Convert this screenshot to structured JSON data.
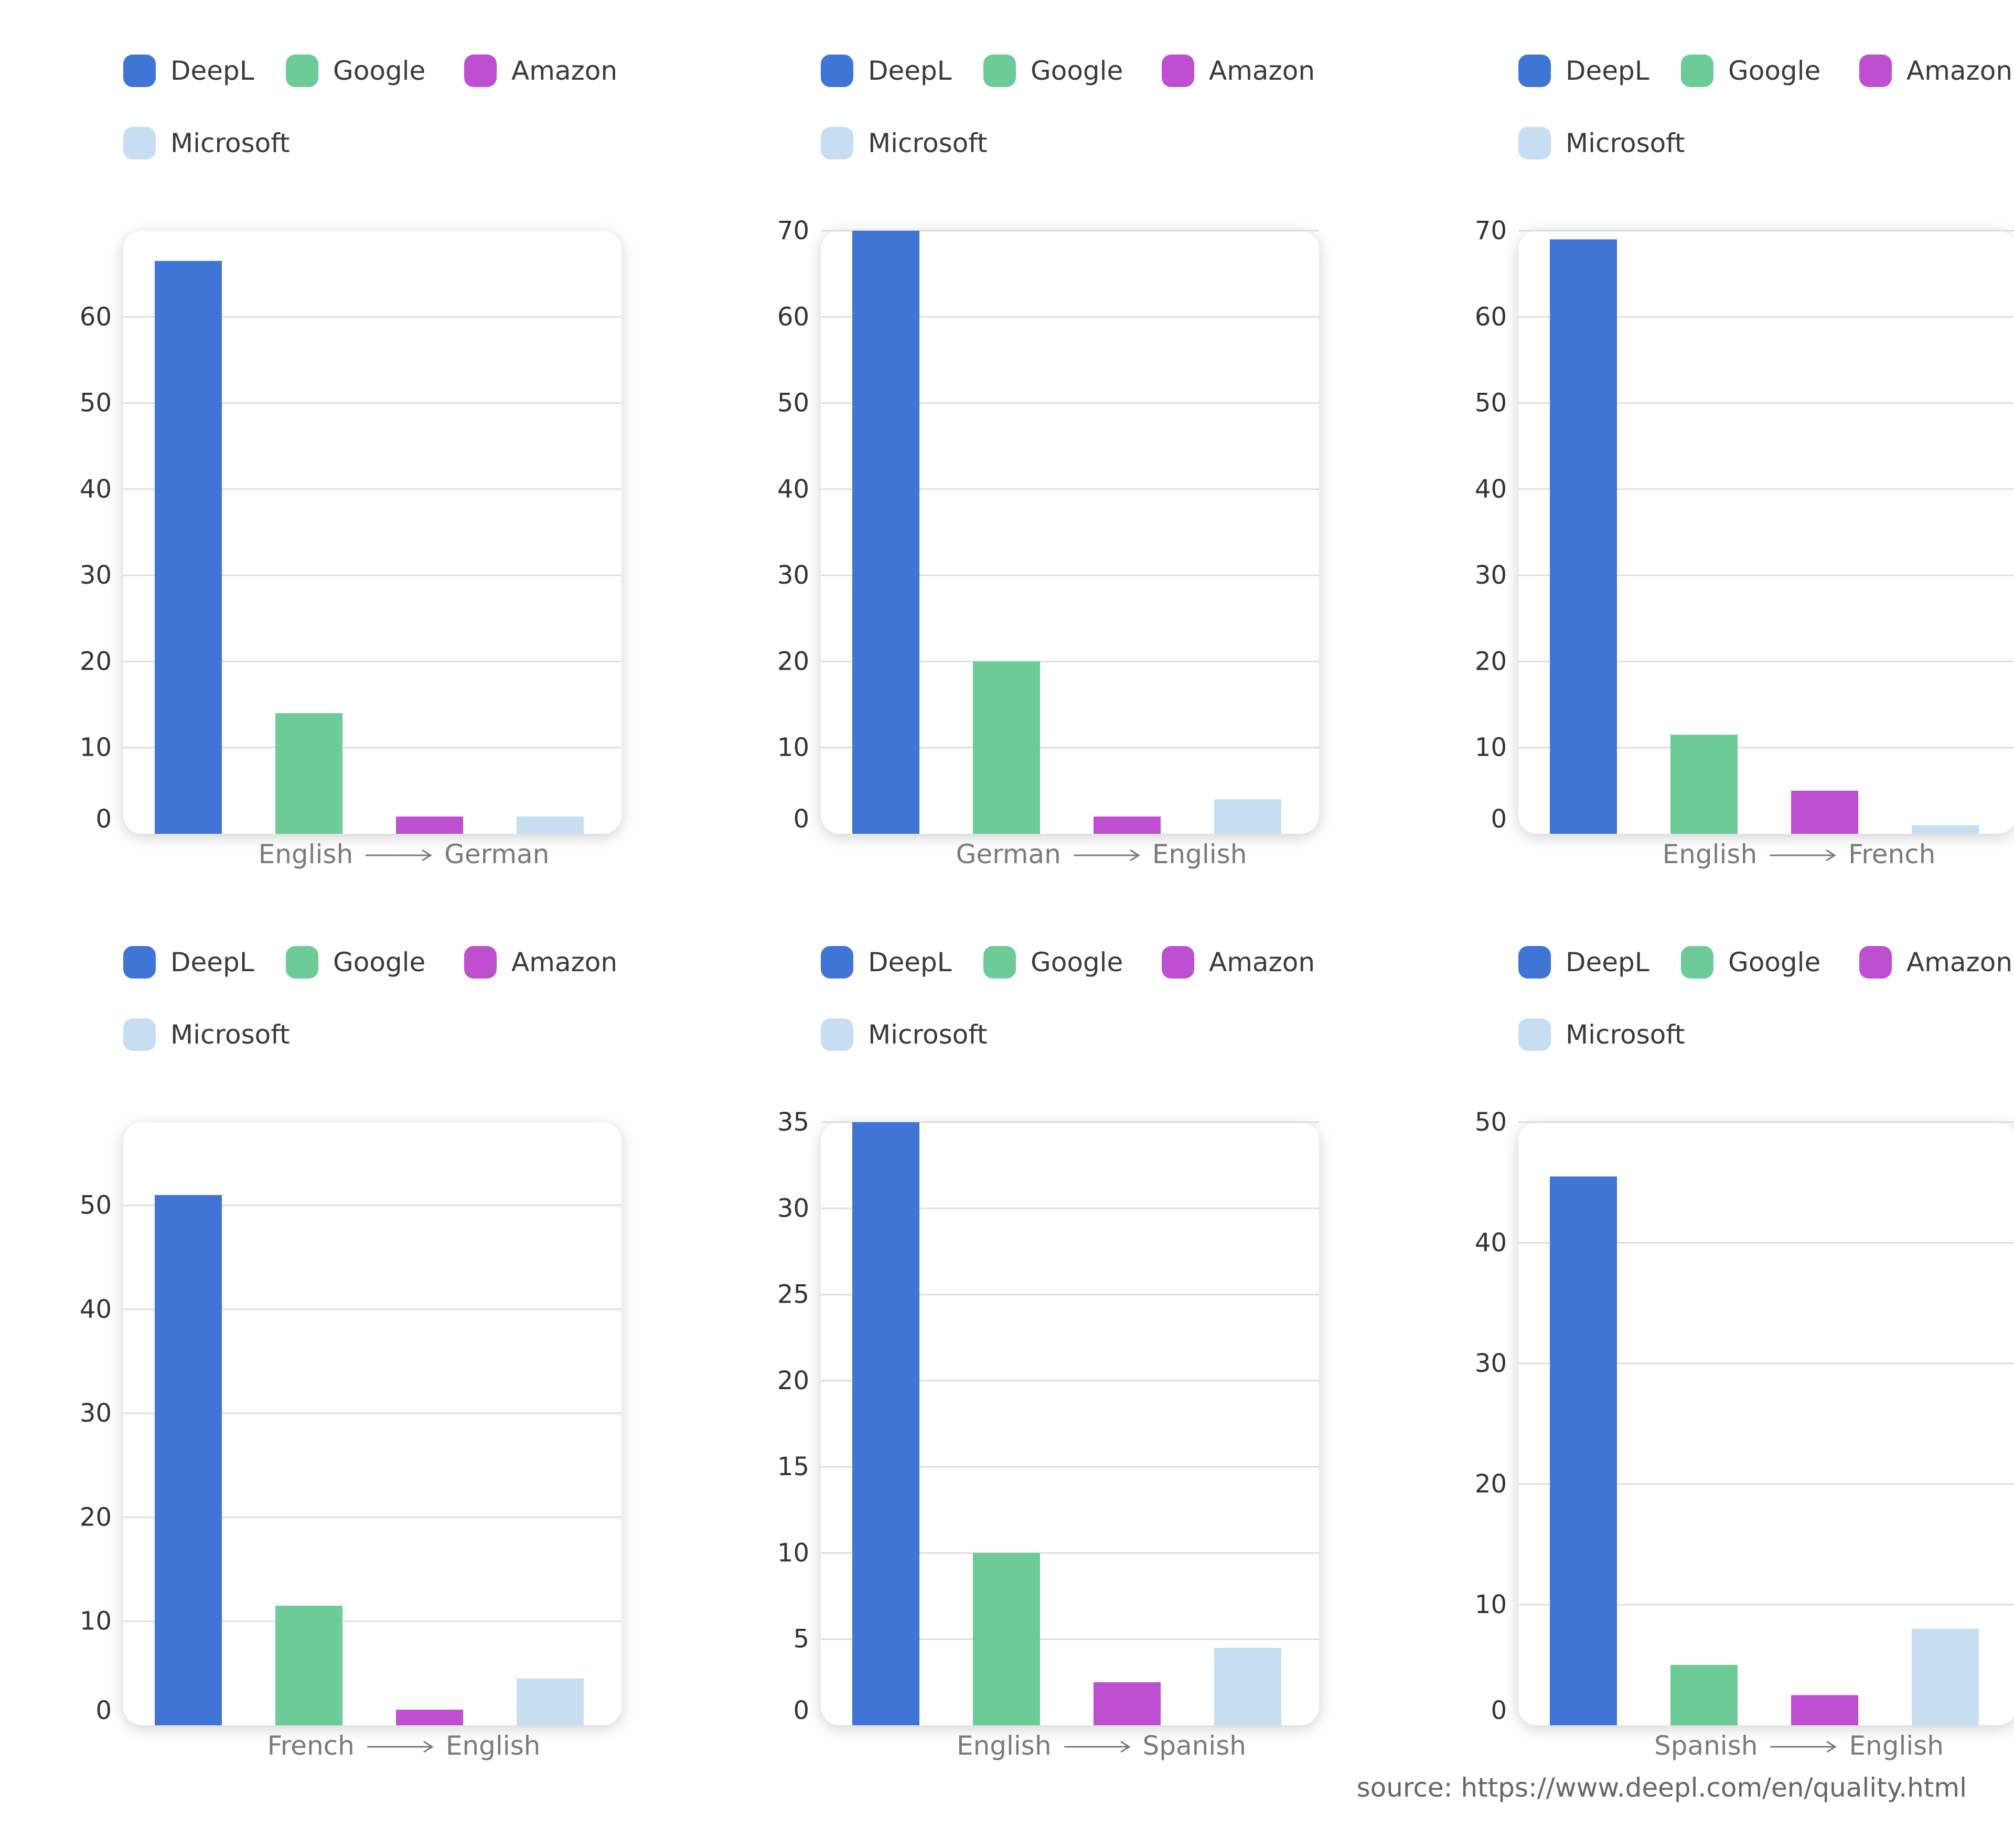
{
  "colors": {
    "DeepL": "#3f76d6",
    "Google": "#6ccb97",
    "Amazon": "#bd4fd0",
    "Microsoft": "#c7def2"
  },
  "legend": [
    "DeepL",
    "Google",
    "Amazon",
    "Microsoft"
  ],
  "arrow_icon": "long-right-arrow-icon",
  "chart_data": [
    {
      "type": "bar",
      "categories": [
        "DeepL",
        "Google",
        "Amazon",
        "Microsoft"
      ],
      "values": [
        66.5,
        14,
        2,
        2
      ],
      "ylim": [
        0,
        70
      ],
      "yticks": [
        0,
        10,
        20,
        30,
        40,
        50,
        60
      ],
      "source_lang": "English",
      "target_lang": "German"
    },
    {
      "type": "bar",
      "categories": [
        "DeepL",
        "Google",
        "Amazon",
        "Microsoft"
      ],
      "values": [
        70,
        20,
        2,
        4
      ],
      "ylim": [
        0,
        70
      ],
      "yticks": [
        0,
        10,
        20,
        30,
        40,
        50,
        60,
        70
      ],
      "source_lang": "German",
      "target_lang": "English"
    },
    {
      "type": "bar",
      "categories": [
        "DeepL",
        "Google",
        "Amazon",
        "Microsoft"
      ],
      "values": [
        69,
        11.5,
        5,
        1
      ],
      "ylim": [
        0,
        70
      ],
      "yticks": [
        0,
        10,
        20,
        30,
        40,
        50,
        60,
        70
      ],
      "source_lang": "English",
      "target_lang": "French"
    },
    {
      "type": "bar",
      "categories": [
        "DeepL",
        "Google",
        "Amazon",
        "Microsoft"
      ],
      "values": [
        51,
        11.5,
        1.5,
        4.5
      ],
      "ylim": [
        0,
        58
      ],
      "yticks": [
        0,
        10,
        20,
        30,
        40,
        50
      ],
      "source_lang": "French",
      "target_lang": "English"
    },
    {
      "type": "bar",
      "categories": [
        "DeepL",
        "Google",
        "Amazon",
        "Microsoft"
      ],
      "values": [
        35,
        10,
        2.5,
        4.5
      ],
      "ylim": [
        0,
        35
      ],
      "yticks": [
        0,
        5,
        10,
        15,
        20,
        25,
        30,
        35
      ],
      "source_lang": "English",
      "target_lang": "Spanish"
    },
    {
      "type": "bar",
      "categories": [
        "DeepL",
        "Google",
        "Amazon",
        "Microsoft"
      ],
      "values": [
        45.5,
        5,
        2.5,
        8
      ],
      "ylim": [
        0,
        50
      ],
      "yticks": [
        0,
        10,
        20,
        30,
        40,
        50
      ],
      "source_lang": "Spanish",
      "target_lang": "English"
    }
  ],
  "source_note": "source: https://www.deepl.com/en/quality.html"
}
